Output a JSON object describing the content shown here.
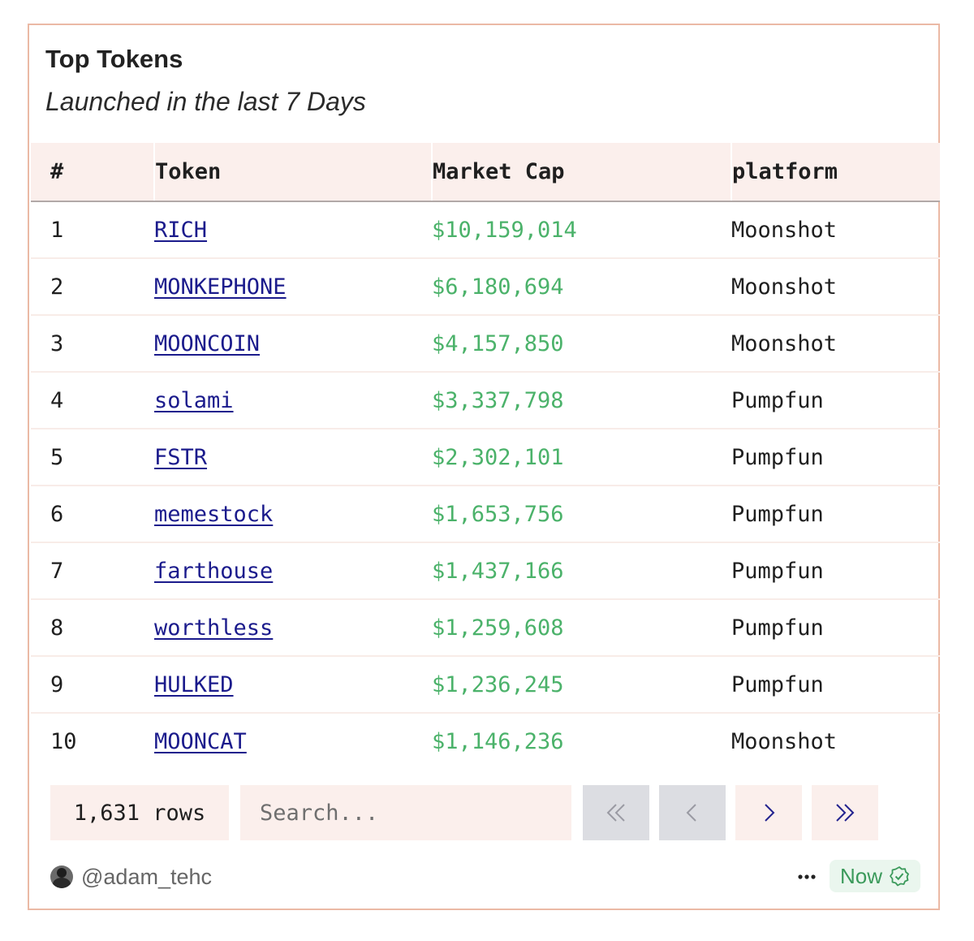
{
  "header": {
    "title": "Top Tokens",
    "subtitle": "Launched in the last 7 Days"
  },
  "table": {
    "columns": [
      "#",
      "Token",
      "Market Cap",
      "platform"
    ],
    "rows": [
      {
        "rank": "1",
        "token": "RICH",
        "market_cap": "$10,159,014",
        "platform": "Moonshot"
      },
      {
        "rank": "2",
        "token": "MONKEPHONE",
        "market_cap": "$6,180,694",
        "platform": "Moonshot"
      },
      {
        "rank": "3",
        "token": "MOONCOIN",
        "market_cap": "$4,157,850",
        "platform": "Moonshot"
      },
      {
        "rank": "4",
        "token": "solami",
        "market_cap": "$3,337,798",
        "platform": "Pumpfun"
      },
      {
        "rank": "5",
        "token": "FSTR",
        "market_cap": "$2,302,101",
        "platform": "Pumpfun"
      },
      {
        "rank": "6",
        "token": "memestock",
        "market_cap": "$1,653,756",
        "platform": "Pumpfun"
      },
      {
        "rank": "7",
        "token": "farthouse",
        "market_cap": "$1,437,166",
        "platform": "Pumpfun"
      },
      {
        "rank": "8",
        "token": "worthless",
        "market_cap": "$1,259,608",
        "platform": "Pumpfun"
      },
      {
        "rank": "9",
        "token": "HULKED",
        "market_cap": "$1,236,245",
        "platform": "Pumpfun"
      },
      {
        "rank": "10",
        "token": "MOONCAT",
        "market_cap": "$1,146,236",
        "platform": "Moonshot"
      }
    ]
  },
  "pagination": {
    "row_count": "1,631 rows",
    "search_placeholder": "Search...",
    "buttons": {
      "first": {
        "icon": "double-chevron-left-icon",
        "enabled": false
      },
      "prev": {
        "icon": "chevron-left-icon",
        "enabled": false
      },
      "next": {
        "icon": "chevron-right-icon",
        "enabled": true
      },
      "last": {
        "icon": "double-chevron-right-icon",
        "enabled": true
      }
    }
  },
  "footer": {
    "author": "@adam_tehc",
    "more_icon": "ellipsis-icon",
    "status_label": "Now",
    "status_icon": "verified-check-icon"
  },
  "colors": {
    "border": "#ebb9a5",
    "header_bg": "#fbefec",
    "link": "#1b1b8c",
    "market_cap": "#4bb26a",
    "status_green": "#3b9a5b",
    "disabled_button": "#dcdde2"
  }
}
